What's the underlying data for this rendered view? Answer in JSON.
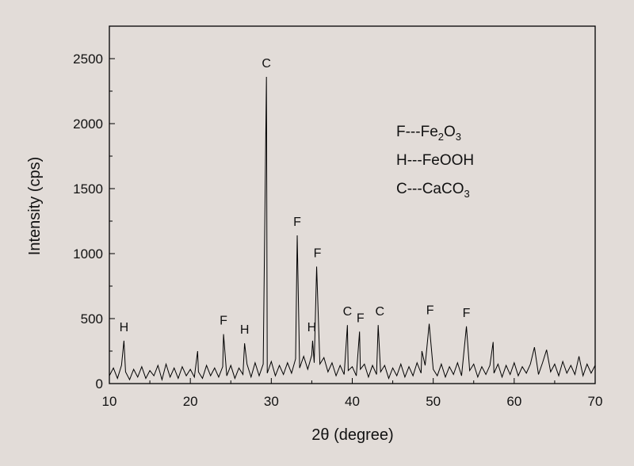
{
  "chart_data": {
    "type": "line",
    "xlabel": "2θ  (degree)",
    "ylabel": "Intensity (cps)",
    "xlim": [
      10,
      70
    ],
    "ylim": [
      0,
      2750
    ],
    "xticks": [
      10,
      20,
      30,
      40,
      50,
      60,
      70
    ],
    "yticks": [
      0,
      500,
      1000,
      1500,
      2000,
      2500
    ],
    "minor_ticks": true,
    "grid": false,
    "series": [
      {
        "color": "#000000",
        "x": [
          10.0,
          10.5,
          11.0,
          11.5,
          11.8,
          12.0,
          12.5,
          13.0,
          13.5,
          14.0,
          14.5,
          15.0,
          15.5,
          16.0,
          16.5,
          17.0,
          17.5,
          18.0,
          18.5,
          19.0,
          19.5,
          20.0,
          20.5,
          20.9,
          21.0,
          21.5,
          22.0,
          22.5,
          23.0,
          23.5,
          24.0,
          24.1,
          24.5,
          25.0,
          25.5,
          26.0,
          26.5,
          26.7,
          27.0,
          27.5,
          28.0,
          28.5,
          29.0,
          29.4,
          29.5,
          30.0,
          30.5,
          31.0,
          31.5,
          32.0,
          32.5,
          33.0,
          33.2,
          33.5,
          34.0,
          34.5,
          35.0,
          35.1,
          35.3,
          35.6,
          36.0,
          36.5,
          37.0,
          37.5,
          38.0,
          38.5,
          39.0,
          39.4,
          39.5,
          40.0,
          40.5,
          40.9,
          41.0,
          41.5,
          42.0,
          42.5,
          43.0,
          43.2,
          43.5,
          44.0,
          44.5,
          45.0,
          45.5,
          46.0,
          46.5,
          47.0,
          47.5,
          48.0,
          48.5,
          48.6,
          49.0,
          49.5,
          50.0,
          50.5,
          51.0,
          51.5,
          52.0,
          52.5,
          53.0,
          53.5,
          54.1,
          54.5,
          55.0,
          55.5,
          56.0,
          56.5,
          57.0,
          57.4,
          57.5,
          58.0,
          58.5,
          59.0,
          59.5,
          60.0,
          60.5,
          61.0,
          61.5,
          62.0,
          62.5,
          63.0,
          63.5,
          64.0,
          64.5,
          65.0,
          65.5,
          66.0,
          66.5,
          67.0,
          67.5,
          68.0,
          68.5,
          69.0,
          69.5,
          70.0
        ],
        "values": [
          60,
          120,
          40,
          140,
          330,
          90,
          30,
          110,
          50,
          130,
          40,
          100,
          60,
          140,
          30,
          150,
          50,
          120,
          40,
          130,
          60,
          110,
          50,
          250,
          90,
          40,
          140,
          60,
          120,
          50,
          130,
          380,
          60,
          140,
          40,
          120,
          70,
          310,
          150,
          50,
          160,
          60,
          150,
          2360,
          80,
          170,
          60,
          140,
          70,
          160,
          80,
          190,
          1140,
          120,
          210,
          110,
          220,
          330,
          160,
          900,
          150,
          200,
          90,
          160,
          60,
          140,
          70,
          450,
          100,
          130,
          60,
          400,
          110,
          150,
          50,
          140,
          70,
          450,
          90,
          140,
          40,
          120,
          60,
          150,
          50,
          130,
          60,
          160,
          80,
          250,
          140,
          460,
          110,
          60,
          150,
          50,
          130,
          70,
          160,
          60,
          440,
          100,
          150,
          50,
          130,
          70,
          140,
          320,
          80,
          150,
          50,
          140,
          70,
          160,
          60,
          130,
          80,
          150,
          280,
          70,
          160,
          260,
          90,
          150,
          60,
          170,
          80,
          140,
          70,
          210,
          60,
          150,
          80,
          140
        ]
      }
    ],
    "annotations": [
      {
        "text": "H",
        "x": 11.8,
        "y": 330
      },
      {
        "text": "F",
        "x": 24.1,
        "y": 380
      },
      {
        "text": "H",
        "x": 26.7,
        "y": 310
      },
      {
        "text": "C",
        "x": 29.4,
        "y": 2360
      },
      {
        "text": "F",
        "x": 33.2,
        "y": 1140
      },
      {
        "text": "H",
        "x": 35.0,
        "y": 330
      },
      {
        "text": "F",
        "x": 35.7,
        "y": 900
      },
      {
        "text": "C",
        "x": 39.4,
        "y": 450
      },
      {
        "text": "F",
        "x": 41.0,
        "y": 400
      },
      {
        "text": "C",
        "x": 43.4,
        "y": 450
      },
      {
        "text": "F",
        "x": 49.6,
        "y": 460
      },
      {
        "text": "F",
        "x": 54.1,
        "y": 440
      }
    ],
    "legend": [
      [
        "F---Fe",
        "2",
        "O",
        "3"
      ],
      [
        "H---FeOOH"
      ],
      [
        "C---CaCO",
        "3"
      ]
    ]
  }
}
